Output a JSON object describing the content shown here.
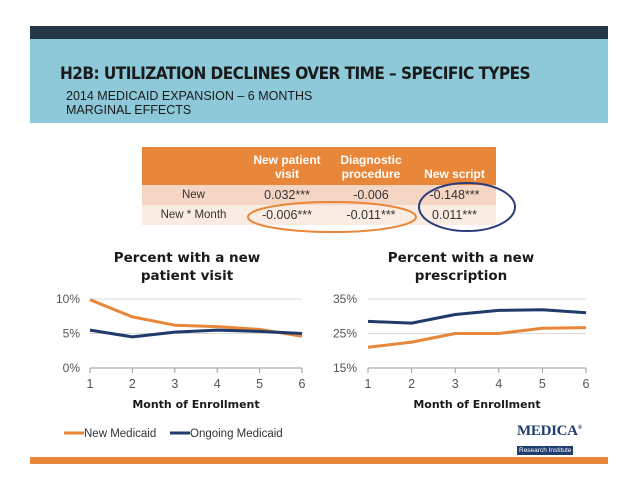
{
  "slide": {
    "title": "H2B:  UTILIZATION DECLINES OVER TIME – SPECIFIC TYPES",
    "subtitle_line1": "2014 MEDICAID EXPANSION – 6 MONTHS",
    "subtitle_line2": "MARGINAL EFFECTS",
    "colors": {
      "dark_bar": "#243745",
      "band": "#8dc9d8",
      "orange": "#e8873a",
      "navy": "#1f3a6b",
      "oval": "#2a3d7a"
    }
  },
  "table": {
    "headers": [
      "New patient visit",
      "Diagnostic procedure",
      "New script"
    ],
    "header_lines": [
      [
        "New patient",
        "visit"
      ],
      [
        "Diagnostic",
        "procedure"
      ],
      [
        "New script"
      ]
    ],
    "rows": [
      {
        "label": "New",
        "values": [
          "0.032***",
          "-0.006",
          "-0.148***"
        ]
      },
      {
        "label": "New * Month",
        "values": [
          "-0.006***",
          "-0.011***",
          "0.011***"
        ]
      }
    ]
  },
  "chart_data": [
    {
      "type": "line",
      "title": "Percent with a new patient visit",
      "title_lines": [
        "Percent with a new",
        "patient visit"
      ],
      "xlabel": "Month of Enrollment",
      "ylabel": "",
      "x": [
        1,
        2,
        3,
        4,
        5,
        6
      ],
      "xticks": [
        "1",
        "2",
        "3",
        "4",
        "5",
        "6"
      ],
      "yticks": [
        {
          "value": 0,
          "label": "0%"
        },
        {
          "value": 5,
          "label": "5%"
        },
        {
          "value": 10,
          "label": "10%"
        }
      ],
      "ylim": [
        0,
        10
      ],
      "grid": true,
      "series": [
        {
          "name": "New Medicaid",
          "color": "#e8873a",
          "values": [
            9.9,
            7.4,
            6.2,
            6.0,
            5.6,
            4.6
          ]
        },
        {
          "name": "Ongoing Medicaid",
          "color": "#1f3a6b",
          "values": [
            5.5,
            4.5,
            5.2,
            5.5,
            5.3,
            5.0
          ]
        }
      ],
      "legend": "bottom"
    },
    {
      "type": "line",
      "title": "Percent with a new prescription",
      "title_lines": [
        "Percent with a new",
        "prescription"
      ],
      "xlabel": "Month of Enrollment",
      "ylabel": "",
      "x": [
        1,
        2,
        3,
        4,
        5,
        6
      ],
      "xticks": [
        "1",
        "2",
        "3",
        "4",
        "5",
        "6"
      ],
      "yticks": [
        {
          "value": 15,
          "label": "15%"
        },
        {
          "value": 25,
          "label": "25%"
        },
        {
          "value": 35,
          "label": "35%"
        }
      ],
      "ylim": [
        15,
        35
      ],
      "grid": true,
      "series": [
        {
          "name": "New Medicaid",
          "color": "#e8873a",
          "values": [
            21.0,
            22.5,
            25.0,
            25.0,
            26.5,
            26.7
          ]
        },
        {
          "name": "Ongoing Medicaid",
          "color": "#1f3a6b",
          "values": [
            28.5,
            28.0,
            30.5,
            31.7,
            31.9,
            31.0
          ]
        }
      ],
      "legend": "none"
    }
  ],
  "legend": [
    {
      "name": "New Medicaid",
      "color": "#e8873a"
    },
    {
      "name": "Ongoing Medicaid",
      "color": "#1f3a6b"
    }
  ],
  "logo": {
    "main": "MEDICA",
    "sub": "Research Institute",
    "mark": "®"
  }
}
